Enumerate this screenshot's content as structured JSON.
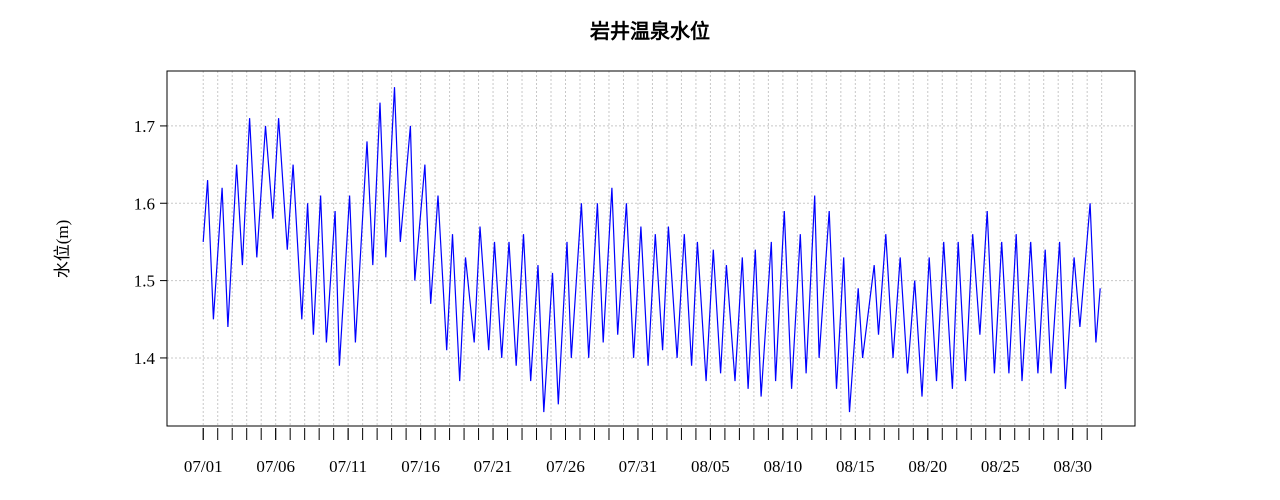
{
  "chart_data": {
    "type": "line",
    "title": "岩井温泉水位",
    "y_label": "水位(m)",
    "x": [
      0.0,
      0.3,
      0.7,
      1.3,
      1.7,
      2.3,
      2.7,
      3.2,
      3.7,
      4.3,
      4.8,
      5.2,
      5.8,
      6.2,
      6.8,
      7.2,
      7.6,
      8.1,
      8.5,
      9.1,
      9.4,
      10.1,
      10.5,
      11.3,
      11.7,
      12.2,
      12.6,
      13.2,
      13.6,
      14.3,
      14.6,
      15.3,
      15.7,
      16.2,
      16.8,
      17.2,
      17.7,
      18.1,
      18.7,
      19.1,
      19.7,
      20.1,
      20.6,
      21.1,
      21.6,
      22.1,
      22.6,
      23.1,
      23.5,
      24.1,
      24.5,
      25.1,
      25.4,
      26.1,
      26.6,
      27.2,
      27.6,
      28.2,
      28.6,
      29.2,
      29.7,
      30.2,
      30.7,
      31.2,
      31.7,
      32.1,
      32.7,
      33.2,
      33.7,
      34.1,
      34.7,
      35.2,
      35.7,
      36.1,
      36.7,
      37.2,
      37.6,
      38.1,
      38.5,
      39.2,
      39.5,
      40.1,
      40.6,
      41.2,
      41.6,
      42.2,
      42.5,
      43.2,
      43.7,
      44.2,
      44.6,
      45.2,
      45.5,
      46.3,
      46.6,
      47.1,
      47.6,
      48.1,
      48.6,
      49.1,
      49.6,
      50.1,
      50.6,
      51.1,
      51.7,
      52.1,
      52.6,
      53.1,
      53.6,
      54.1,
      54.6,
      55.1,
      55.6,
      56.1,
      56.5,
      57.1,
      57.6,
      58.1,
      58.5,
      59.1,
      59.5,
      60.1,
      60.5,
      61.2,
      61.6,
      61.9
    ],
    "series": [
      {
        "name": "水位",
        "color": "#0000ff",
        "values": [
          1.55,
          1.63,
          1.45,
          1.62,
          1.44,
          1.65,
          1.52,
          1.71,
          1.53,
          1.7,
          1.58,
          1.71,
          1.54,
          1.65,
          1.45,
          1.6,
          1.43,
          1.61,
          1.42,
          1.59,
          1.39,
          1.61,
          1.42,
          1.68,
          1.52,
          1.73,
          1.53,
          1.75,
          1.55,
          1.7,
          1.5,
          1.65,
          1.47,
          1.61,
          1.41,
          1.56,
          1.37,
          1.53,
          1.42,
          1.57,
          1.41,
          1.55,
          1.4,
          1.55,
          1.39,
          1.56,
          1.37,
          1.52,
          1.33,
          1.51,
          1.34,
          1.55,
          1.4,
          1.6,
          1.4,
          1.6,
          1.42,
          1.62,
          1.43,
          1.6,
          1.4,
          1.57,
          1.39,
          1.56,
          1.41,
          1.57,
          1.4,
          1.56,
          1.39,
          1.55,
          1.37,
          1.54,
          1.38,
          1.52,
          1.37,
          1.53,
          1.36,
          1.54,
          1.35,
          1.55,
          1.37,
          1.59,
          1.36,
          1.56,
          1.38,
          1.61,
          1.4,
          1.59,
          1.36,
          1.53,
          1.33,
          1.49,
          1.4,
          1.52,
          1.43,
          1.56,
          1.4,
          1.53,
          1.38,
          1.5,
          1.35,
          1.53,
          1.37,
          1.55,
          1.36,
          1.55,
          1.37,
          1.56,
          1.43,
          1.59,
          1.38,
          1.55,
          1.38,
          1.56,
          1.37,
          1.55,
          1.38,
          1.54,
          1.38,
          1.55,
          1.36,
          1.53,
          1.44,
          1.6,
          1.42,
          1.49
        ]
      }
    ],
    "xlim": [
      -2.5,
      64.3
    ],
    "ylim": [
      1.312,
      1.771
    ],
    "xticks": [
      {
        "value": 0,
        "label": "07/01"
      },
      {
        "value": 5,
        "label": "07/06"
      },
      {
        "value": 10,
        "label": "07/11"
      },
      {
        "value": 15,
        "label": "07/16"
      },
      {
        "value": 20,
        "label": "07/21"
      },
      {
        "value": 25,
        "label": "07/26"
      },
      {
        "value": 30,
        "label": "07/31"
      },
      {
        "value": 35,
        "label": "08/05"
      },
      {
        "value": 40,
        "label": "08/10"
      },
      {
        "value": 45,
        "label": "08/15"
      },
      {
        "value": 50,
        "label": "08/20"
      },
      {
        "value": 55,
        "label": "08/25"
      },
      {
        "value": 60,
        "label": "08/30"
      }
    ],
    "xminor_ticks": [
      0,
      1,
      2,
      3,
      4,
      5,
      6,
      7,
      8,
      9,
      10,
      11,
      12,
      13,
      14,
      15,
      16,
      17,
      18,
      19,
      20,
      21,
      22,
      23,
      24,
      25,
      26,
      27,
      28,
      29,
      30,
      31,
      32,
      33,
      34,
      35,
      36,
      37,
      38,
      39,
      40,
      41,
      42,
      43,
      44,
      45,
      46,
      47,
      48,
      49,
      50,
      51,
      52,
      53,
      54,
      55,
      56,
      57,
      58,
      59,
      60,
      61,
      62
    ],
    "yticks": [
      1.4,
      1.5,
      1.6,
      1.7
    ],
    "grid": true
  }
}
